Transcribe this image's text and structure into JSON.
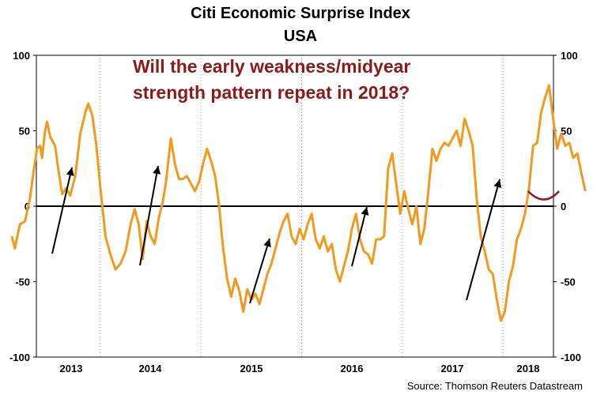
{
  "chart_data": {
    "type": "line",
    "title": "Citi Economic Surprise Index",
    "subtitle": "USA",
    "annotation": [
      "Will the early weakness/midyear",
      "strength pattern repeat in 2018?"
    ],
    "source": "Source: Thomson Reuters Datastream",
    "x_labels": [
      "2013",
      "2014",
      "2015",
      "2016",
      "2017",
      "2018"
    ],
    "ylim": [
      -100,
      100
    ],
    "y_ticks": [
      100,
      50,
      0,
      -50,
      -100
    ],
    "y_tick_labels": [
      "100",
      "50",
      "0",
      "-50",
      "-100"
    ],
    "grid": "vertical dotted at year boundaries",
    "colors": {
      "line": "#f39a1c",
      "annotation": "#8b1a1a",
      "arrow": "#000000",
      "zero_line": "#000000"
    },
    "series": [
      {
        "values": [
          [
            2012.62,
            -20
          ],
          [
            2012.65,
            -28
          ],
          [
            2012.7,
            -12
          ],
          [
            2012.75,
            -10
          ],
          [
            2012.8,
            5
          ],
          [
            2012.83,
            20
          ],
          [
            2012.87,
            38
          ],
          [
            2012.9,
            40
          ],
          [
            2012.92,
            32
          ],
          [
            2012.95,
            50
          ],
          [
            2012.97,
            56
          ],
          [
            2013.0,
            46
          ],
          [
            2013.05,
            40
          ],
          [
            2013.08,
            25
          ],
          [
            2013.12,
            8
          ],
          [
            2013.16,
            12
          ],
          [
            2013.2,
            7
          ],
          [
            2013.25,
            20
          ],
          [
            2013.3,
            48
          ],
          [
            2013.35,
            62
          ],
          [
            2013.38,
            68
          ],
          [
            2013.42,
            60
          ],
          [
            2013.46,
            40
          ],
          [
            2013.5,
            12
          ],
          [
            2013.55,
            -20
          ],
          [
            2013.6,
            -32
          ],
          [
            2013.65,
            -42
          ],
          [
            2013.7,
            -38
          ],
          [
            2013.75,
            -30
          ],
          [
            2013.8,
            -12
          ],
          [
            2013.84,
            -2
          ],
          [
            2013.88,
            -12
          ],
          [
            2013.92,
            -35
          ],
          [
            2013.96,
            -10
          ],
          [
            2014.0,
            -20
          ],
          [
            2014.04,
            -25
          ],
          [
            2014.08,
            -8
          ],
          [
            2014.12,
            3
          ],
          [
            2014.15,
            15
          ],
          [
            2014.2,
            45
          ],
          [
            2014.24,
            28
          ],
          [
            2014.28,
            18
          ],
          [
            2014.32,
            18
          ],
          [
            2014.36,
            20
          ],
          [
            2014.4,
            15
          ],
          [
            2014.44,
            10
          ],
          [
            2014.48,
            16
          ],
          [
            2014.52,
            28
          ],
          [
            2014.56,
            38
          ],
          [
            2014.6,
            30
          ],
          [
            2014.64,
            20
          ],
          [
            2014.68,
            0
          ],
          [
            2014.72,
            -28
          ],
          [
            2014.76,
            -48
          ],
          [
            2014.8,
            -60
          ],
          [
            2014.84,
            -48
          ],
          [
            2014.88,
            -56
          ],
          [
            2014.92,
            -70
          ],
          [
            2014.96,
            -55
          ],
          [
            2015.0,
            -62
          ],
          [
            2015.04,
            -58
          ],
          [
            2015.08,
            -65
          ],
          [
            2015.12,
            -55
          ],
          [
            2015.16,
            -45
          ],
          [
            2015.2,
            -38
          ],
          [
            2015.24,
            -28
          ],
          [
            2015.28,
            -18
          ],
          [
            2015.32,
            -10
          ],
          [
            2015.36,
            -5
          ],
          [
            2015.4,
            -20
          ],
          [
            2015.44,
            -25
          ],
          [
            2015.48,
            -15
          ],
          [
            2015.52,
            -22
          ],
          [
            2015.56,
            -12
          ],
          [
            2015.6,
            -5
          ],
          [
            2015.64,
            -22
          ],
          [
            2015.68,
            -28
          ],
          [
            2015.72,
            -20
          ],
          [
            2015.76,
            -30
          ],
          [
            2015.8,
            -25
          ],
          [
            2015.84,
            -42
          ],
          [
            2015.88,
            -50
          ],
          [
            2015.92,
            -40
          ],
          [
            2015.96,
            -30
          ],
          [
            2016.0,
            -15
          ],
          [
            2016.04,
            -5
          ],
          [
            2016.08,
            -22
          ],
          [
            2016.12,
            -30
          ],
          [
            2016.16,
            -32
          ],
          [
            2016.2,
            -38
          ],
          [
            2016.24,
            -22
          ],
          [
            2016.28,
            -22
          ],
          [
            2016.32,
            -20
          ],
          [
            2016.36,
            25
          ],
          [
            2016.4,
            35
          ],
          [
            2016.44,
            15
          ],
          [
            2016.48,
            -5
          ],
          [
            2016.52,
            10
          ],
          [
            2016.56,
            -2
          ],
          [
            2016.6,
            -12
          ],
          [
            2016.64,
            0
          ],
          [
            2016.68,
            -25
          ],
          [
            2016.72,
            -15
          ],
          [
            2016.76,
            10
          ],
          [
            2016.8,
            38
          ],
          [
            2016.84,
            30
          ],
          [
            2016.88,
            38
          ],
          [
            2016.92,
            42
          ],
          [
            2016.96,
            40
          ],
          [
            2017.0,
            45
          ],
          [
            2017.04,
            50
          ],
          [
            2017.08,
            40
          ],
          [
            2017.12,
            58
          ],
          [
            2017.16,
            50
          ],
          [
            2017.2,
            40
          ],
          [
            2017.24,
            5
          ],
          [
            2017.28,
            -20
          ],
          [
            2017.32,
            -30
          ],
          [
            2017.36,
            -42
          ],
          [
            2017.4,
            -45
          ],
          [
            2017.44,
            -62
          ],
          [
            2017.48,
            -76
          ],
          [
            2017.52,
            -70
          ],
          [
            2017.56,
            -50
          ],
          [
            2017.6,
            -40
          ],
          [
            2017.64,
            -22
          ],
          [
            2017.68,
            -15
          ],
          [
            2017.72,
            -5
          ],
          [
            2017.76,
            12
          ],
          [
            2017.8,
            40
          ],
          [
            2017.84,
            42
          ],
          [
            2017.88,
            62
          ],
          [
            2017.92,
            72
          ],
          [
            2017.96,
            80
          ],
          [
            2018.0,
            58
          ],
          [
            2018.04,
            38
          ],
          [
            2018.08,
            48
          ],
          [
            2018.12,
            40
          ],
          [
            2018.16,
            42
          ],
          [
            2018.2,
            32
          ],
          [
            2018.24,
            35
          ],
          [
            2018.28,
            22
          ],
          [
            2018.32,
            10
          ]
        ]
      }
    ]
  }
}
